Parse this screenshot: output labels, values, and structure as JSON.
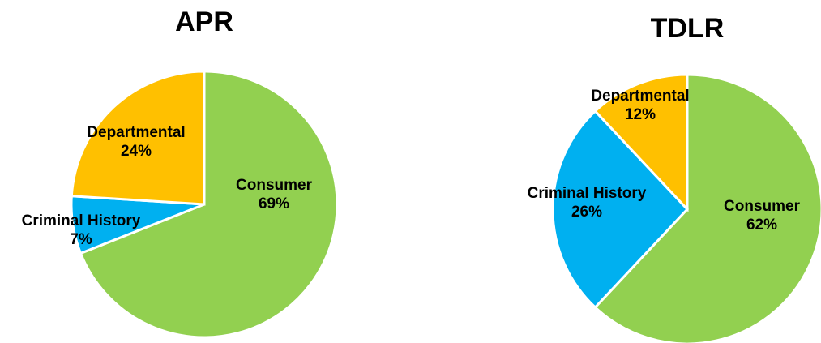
{
  "chart_data": [
    {
      "type": "pie",
      "title": "APR",
      "slices": [
        {
          "label": "Consumer",
          "value": 69,
          "display": "69%",
          "color": "#92d050"
        },
        {
          "label": "Criminal History",
          "value": 7,
          "display": "7%",
          "color": "#00b0f0"
        },
        {
          "label": "Departmental",
          "value": 24,
          "display": "24%",
          "color": "#ffc000"
        }
      ]
    },
    {
      "type": "pie",
      "title": "TDLR",
      "slices": [
        {
          "label": "Consumer",
          "value": 62,
          "display": "62%",
          "color": "#92d050"
        },
        {
          "label": "Criminal History",
          "value": 26,
          "display": "26%",
          "color": "#00b0f0"
        },
        {
          "label": "Departmental",
          "value": 12,
          "display": "12%",
          "color": "#ffc000"
        }
      ]
    }
  ]
}
